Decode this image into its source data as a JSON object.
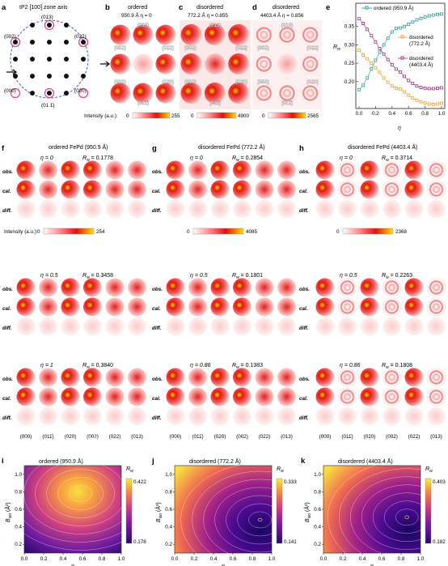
{
  "colors": {
    "ordered_series": "#2a9d9a",
    "disordered_772_series": "#f0a030",
    "disordered_4403_series": "#a0307a",
    "ring_blue": "#3b5fc9",
    "ring_red": "#e04070"
  },
  "row1": {
    "a": {
      "letter": "a",
      "title": "tP2 [100] zone axis",
      "spots": [
        "(013)",
        "(002)",
        "(022)",
        "(000)",
        "(020)",
        "(01 1̄)"
      ]
    },
    "b": {
      "letter": "b",
      "title": "ordered",
      "sub": "950.9 Å   η = 0",
      "labels": [
        "(013)",
        "(002)",
        "(022)",
        "(000)",
        "(020)",
        "(011̄)"
      ]
    },
    "c": {
      "letter": "c",
      "title": "disordered",
      "sub": "772.2 Å   η = 0.855",
      "labels": [
        "(013)",
        "(002)",
        "(022)",
        "(000)",
        "(020)",
        "(011̄)"
      ]
    },
    "d": {
      "letter": "d",
      "title": "disordered",
      "sub": "4403.4 Å   η = 0.856",
      "labels": [
        "(013)",
        "(002)",
        "(022)",
        "(000)",
        "(020)",
        "(011̄)"
      ]
    },
    "intensity_label": "Intensity (a.u.):",
    "cb_b": [
      "0",
      "255"
    ],
    "cb_c": [
      "0",
      "4900"
    ],
    "cb_d": [
      "0",
      "2565"
    ]
  },
  "panel_e": {
    "letter": "e",
    "ylabel": "R",
    "ylabel_sub": "w",
    "xlabel": "η",
    "x_ticks": [
      "0.0",
      "0.2",
      "0.4",
      "0.6",
      "0.8",
      "1.0"
    ],
    "y_ticks": [
      "0.20",
      "0.25",
      "0.30",
      "0.35"
    ],
    "legend": [
      "ordered (950.9 Å)",
      "disordered",
      "(772.2 Å)",
      "disordered",
      "(4403.4 Å)"
    ]
  },
  "chart_data": {
    "type": "scatter",
    "x": [
      0.0,
      0.05,
      0.1,
      0.15,
      0.2,
      0.25,
      0.3,
      0.35,
      0.4,
      0.45,
      0.5,
      0.55,
      0.6,
      0.65,
      0.7,
      0.75,
      0.8,
      0.85,
      0.9,
      0.95,
      1.0
    ],
    "xlabel": "η",
    "ylabel": "Rw",
    "xlim": [
      0,
      1
    ],
    "ylim": [
      0.14,
      0.4
    ],
    "series": [
      {
        "name": "ordered (950.9 Å)",
        "values": [
          0.178,
          0.19,
          0.21,
          0.235,
          0.258,
          0.28,
          0.3,
          0.318,
          0.335,
          0.345,
          0.346,
          0.35,
          0.356,
          0.362,
          0.368,
          0.372,
          0.376,
          0.379,
          0.381,
          0.383,
          0.384
        ]
      },
      {
        "name": "disordered (772.2 Å)",
        "values": [
          0.285,
          0.272,
          0.262,
          0.25,
          0.238,
          0.225,
          0.21,
          0.198,
          0.188,
          0.182,
          0.18,
          0.172,
          0.163,
          0.155,
          0.149,
          0.145,
          0.142,
          0.139,
          0.138,
          0.139,
          0.141
        ]
      },
      {
        "name": "disordered (4403.4 Å)",
        "values": [
          0.371,
          0.358,
          0.342,
          0.325,
          0.308,
          0.29,
          0.275,
          0.26,
          0.246,
          0.234,
          0.226,
          0.214,
          0.203,
          0.195,
          0.188,
          0.184,
          0.182,
          0.181,
          0.181,
          0.182,
          0.183
        ]
      }
    ]
  },
  "row2": {
    "f": {
      "letter": "f",
      "title": "ordered FePd (950.9 Å)",
      "blocks": [
        {
          "eta": "η = 0",
          "rw": "R",
          "rwv": " = 0.1778"
        },
        {
          "eta": "η = 0.5",
          "rw": "R",
          "rwv": " = 0.3458"
        },
        {
          "eta": "η = 1",
          "rw": "R",
          "rwv": " = 0.3840"
        }
      ],
      "cb": [
        "0",
        "254"
      ]
    },
    "g": {
      "letter": "g",
      "title": "disordered FePd (772.2 Å)",
      "blocks": [
        {
          "eta": "η = 0",
          "rw": "R",
          "rwv": " = 0.2854"
        },
        {
          "eta": "η = 0.5",
          "rw": "R",
          "rwv": " = 0.1801"
        },
        {
          "eta": "η = 0.86",
          "rw": "R",
          "rwv": " = 0.1383"
        }
      ],
      "cb": [
        "0",
        "4085"
      ]
    },
    "h": {
      "letter": "h",
      "title": "disordered FePd (4403.4 Å)",
      "blocks": [
        {
          "eta": "η = 0",
          "rw": "R",
          "rwv": " = 0.3714"
        },
        {
          "eta": "η = 0.5",
          "rw": "R",
          "rwv": " = 0.2263"
        },
        {
          "eta": "η = 0.86",
          "rw": "R",
          "rwv": " = 0.1808"
        }
      ],
      "cb": [
        "0",
        "2368"
      ]
    },
    "row_labels": [
      "obs.",
      "cal.",
      "diff."
    ],
    "rw_sub": "w",
    "intensity_label": "Intensity (a.u.):",
    "col_labels": [
      "(000)",
      "(011̄)",
      "(020)",
      "(002)",
      "(022)",
      "(013)"
    ]
  },
  "row3": {
    "i": {
      "letter": "i",
      "title": "ordered (950.9 Å)",
      "cb": [
        "0.422",
        "0.178"
      ]
    },
    "j": {
      "letter": "j",
      "title": "disordered (772.2 Å)",
      "cb": [
        "0.333",
        "0.141"
      ]
    },
    "k": {
      "letter": "k",
      "title": "disordered (4403.4 Å)",
      "cb": [
        "0.403",
        "0.182"
      ]
    },
    "ylabel": "B",
    "ylabel_sub": "iso",
    "ylabel_unit": " (Å²)",
    "xlabel": "η",
    "rw": "R",
    "rw_sub": "w",
    "x_ticks": [
      "0.0",
      "0.2",
      "0.4",
      "0.6",
      "0.8",
      "1.0"
    ],
    "y_ticks": [
      "0.2",
      "0.4",
      "0.6",
      "0.8",
      "1.0"
    ]
  }
}
